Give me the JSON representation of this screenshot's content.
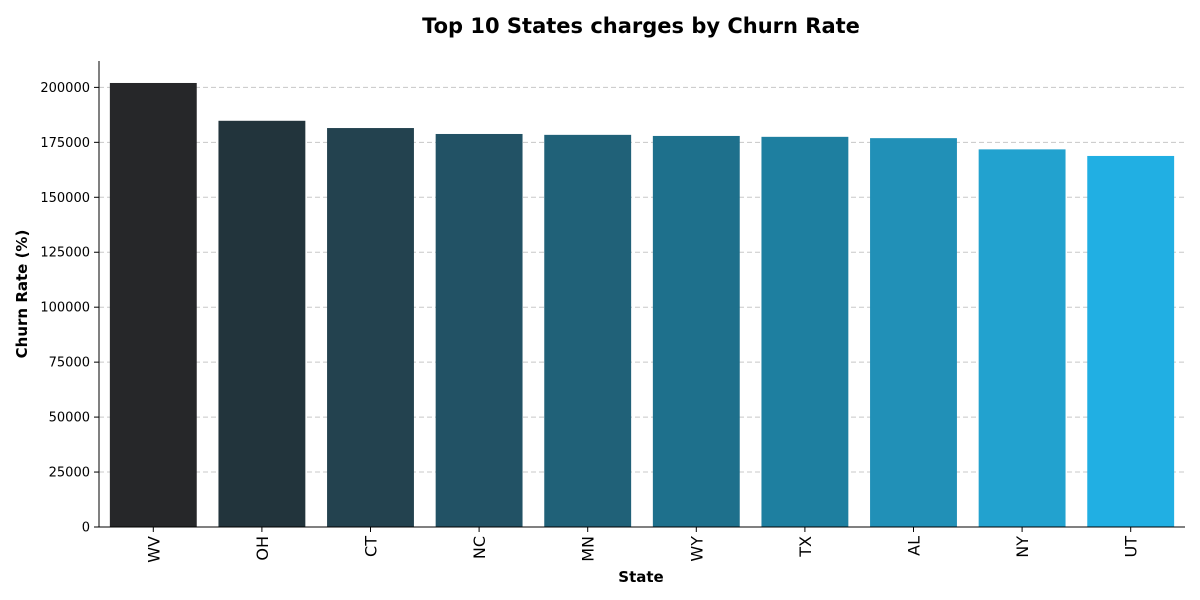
{
  "chart_data": {
    "type": "bar",
    "title": "Top 10 States charges by Churn Rate",
    "xlabel": "State",
    "ylabel": "Churn Rate (%)",
    "categories": [
      "WV",
      "OH",
      "CT",
      "NC",
      "MN",
      "WY",
      "TX",
      "AL",
      "NY",
      "UT"
    ],
    "values": [
      202000,
      184800,
      181500,
      178800,
      178400,
      177900,
      177500,
      176900,
      171800,
      168800
    ],
    "colors": [
      "#262729",
      "#22343c",
      "#23424f",
      "#225265",
      "#206178",
      "#1e708c",
      "#1e7fa0",
      "#2190b7",
      "#22a2cf",
      "#21afe3"
    ],
    "yticks": [
      0,
      25000,
      50000,
      75000,
      100000,
      125000,
      150000,
      175000,
      200000
    ],
    "ylim": [
      0,
      212000
    ],
    "grid": "horizontal dashed",
    "legend": "none"
  }
}
